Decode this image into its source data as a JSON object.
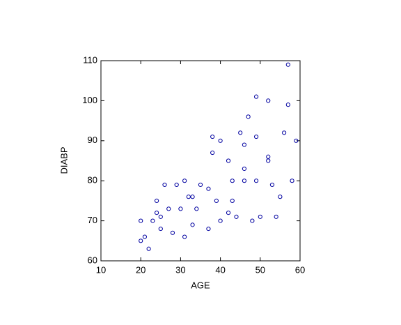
{
  "chart_data": {
    "type": "scatter",
    "x_label": "AGE",
    "y_label": "DIABP",
    "color": "#0000a0",
    "xlim": [
      10,
      60
    ],
    "xticks": [
      10,
      20,
      30,
      40,
      50,
      60
    ],
    "ylim": [
      60,
      110
    ],
    "yticks": [
      60,
      70,
      80,
      90,
      100,
      110
    ],
    "x": [
      57,
      49,
      52,
      57,
      47,
      45,
      56,
      49,
      38,
      40,
      59,
      46,
      38,
      52,
      42,
      52,
      46,
      31,
      43,
      46,
      49,
      58,
      26,
      29,
      35,
      53,
      37,
      32,
      33,
      55,
      24,
      39,
      43,
      27,
      30,
      34,
      24,
      42,
      25,
      44,
      50,
      54,
      20,
      23,
      40,
      48,
      33,
      25,
      37,
      28,
      21,
      31,
      20,
      22
    ],
    "values": [
      109,
      101,
      100,
      99,
      96,
      92,
      92,
      91,
      91,
      90,
      90,
      89,
      87,
      86,
      85,
      85,
      83,
      80,
      80,
      80,
      80,
      80,
      79,
      79,
      79,
      79,
      78,
      76,
      76,
      76,
      75,
      75,
      75,
      73,
      73,
      73,
      72,
      72,
      71,
      71,
      71,
      71,
      70,
      70,
      70,
      70,
      69,
      68,
      68,
      67,
      66,
      66,
      65,
      63
    ]
  }
}
